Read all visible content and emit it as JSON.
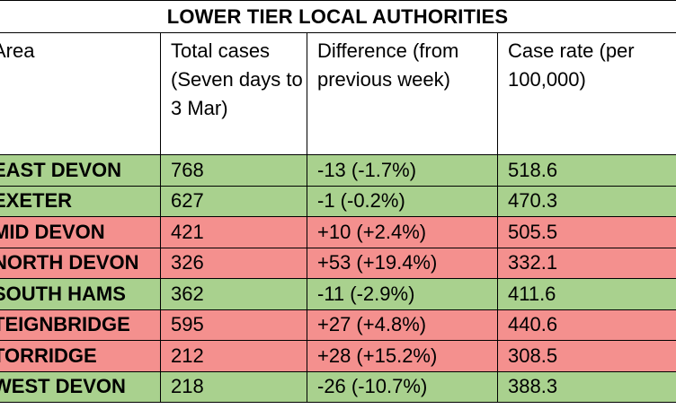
{
  "table": {
    "title": "LOWER TIER LOCAL AUTHORITIES",
    "headers": {
      "area": "Area",
      "total_cases": "Total cases (Seven days to 3 Mar)",
      "difference": "Difference (from previous week)",
      "case_rate": "Case rate (per 100,000)"
    },
    "rows": [
      {
        "area": "EAST DEVON",
        "total": "768",
        "difference": "-13 (-1.7%)",
        "rate": "518.6",
        "status": "green"
      },
      {
        "area": "EXETER",
        "total": "627",
        "difference": "-1 (-0.2%)",
        "rate": "470.3",
        "status": "green"
      },
      {
        "area": "MID DEVON",
        "total": "421",
        "difference": "+10 (+2.4%)",
        "rate": "505.5",
        "status": "red"
      },
      {
        "area": "NORTH DEVON",
        "total": "326",
        "difference": "+53 (+19.4%)",
        "rate": "332.1",
        "status": "red"
      },
      {
        "area": "SOUTH HAMS",
        "total": "362",
        "difference": "-11 (-2.9%)",
        "rate": "411.6",
        "status": "green"
      },
      {
        "area": "TEIGNBRIDGE",
        "total": "595",
        "difference": "+27 (+4.8%)",
        "rate": "440.6",
        "status": "red"
      },
      {
        "area": "TORRIDGE",
        "total": "212",
        "difference": "+28 (+15.2%)",
        "rate": "308.5",
        "status": "red"
      },
      {
        "area": "WEST DEVON",
        "total": "218",
        "difference": "-26 (-10.7%)",
        "rate": "388.3",
        "status": "green"
      }
    ],
    "colors": {
      "increase": "#f4908e",
      "decrease": "#a9d18e"
    }
  }
}
